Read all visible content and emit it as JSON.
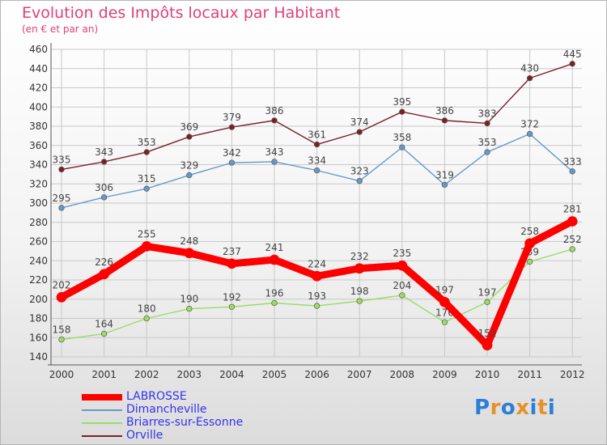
{
  "chart_data": {
    "type": "line",
    "title": "Evolution des Impôts locaux par Habitant",
    "subtitle": "(en € et par an)",
    "x": [
      "2000",
      "2001",
      "2002",
      "2003",
      "2004",
      "2005",
      "2006",
      "2007",
      "2008",
      "2009",
      "2010",
      "2011",
      "2012"
    ],
    "ylim": [
      140,
      460
    ],
    "yticks": [
      140,
      160,
      180,
      200,
      220,
      240,
      260,
      280,
      300,
      320,
      340,
      360,
      380,
      400,
      420,
      440,
      460
    ],
    "grid": true,
    "legend_position": "bottom-left",
    "series": [
      {
        "name": "LABROSSE",
        "color": "#ff0000",
        "values": [
          202,
          226,
          255,
          248,
          237,
          241,
          224,
          232,
          235,
          197,
          152,
          258,
          281
        ]
      },
      {
        "name": "Dimancheville",
        "color": "#6699cc",
        "values": [
          295,
          306,
          315,
          329,
          342,
          343,
          334,
          323,
          358,
          319,
          353,
          372,
          333
        ]
      },
      {
        "name": "Briarres-sur-Essonne",
        "color": "#99dd66",
        "values": [
          158,
          164,
          180,
          190,
          192,
          196,
          193,
          198,
          204,
          176,
          197,
          239,
          252
        ]
      },
      {
        "name": "Orville",
        "color": "#7a1f2a",
        "values": [
          335,
          343,
          353,
          369,
          379,
          386,
          361,
          374,
          395,
          386,
          383,
          430,
          445
        ]
      }
    ]
  },
  "logo": {
    "letters": [
      "P",
      "r",
      "o",
      "x",
      "i",
      "t",
      "i"
    ],
    "colors": [
      "#2b7fd6",
      "#e8902a",
      "#2b7fd6",
      "#e8902a",
      "#2b7fd6",
      "#e8902a",
      "#2b7fd6"
    ]
  }
}
